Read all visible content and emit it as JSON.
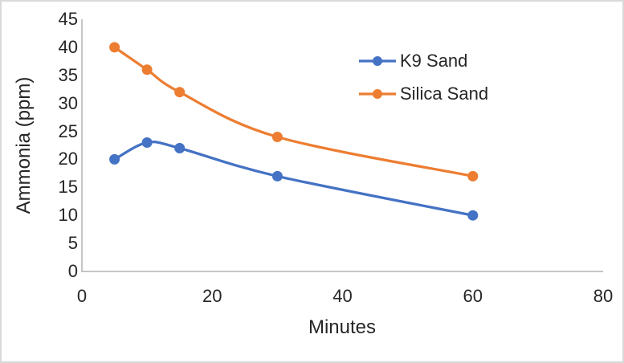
{
  "chart_data": {
    "type": "line",
    "title": "",
    "xlabel": "Minutes",
    "ylabel": "Ammonia (ppm)",
    "x": [
      5,
      10,
      15,
      30,
      60
    ],
    "series": [
      {
        "name": "K9 Sand",
        "color": "#4472C4",
        "values": [
          20,
          23,
          22,
          17,
          10
        ]
      },
      {
        "name": "Silica Sand",
        "color": "#ED7D31",
        "values": [
          40,
          36,
          32,
          24,
          17
        ]
      }
    ],
    "xlim": [
      0,
      80
    ],
    "ylim": [
      0,
      45
    ],
    "x_ticks": [
      0,
      20,
      40,
      60,
      80
    ],
    "y_ticks": [
      0,
      5,
      10,
      15,
      20,
      25,
      30,
      35,
      40,
      45
    ],
    "grid": false,
    "smooth": true,
    "marker": "circle",
    "legend_position": "inside-upper-right"
  },
  "colors": {
    "axis_line": "#BFBFBF",
    "text": "#262626",
    "frame_border": "#D9D9D9",
    "background": "#FFFFFF"
  }
}
